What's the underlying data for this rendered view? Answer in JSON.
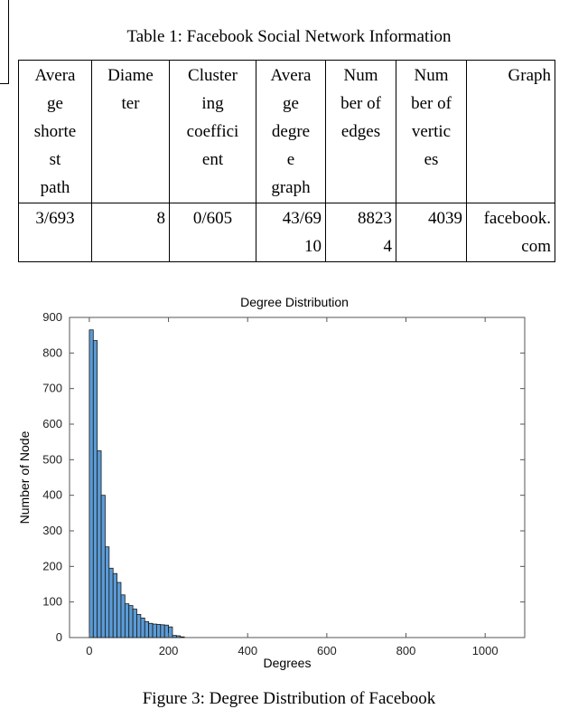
{
  "table": {
    "caption": "Table 1: Facebook Social Network Information",
    "headers": [
      [
        "Avera",
        "ge",
        "shorte",
        "st",
        "path"
      ],
      [
        "Diame",
        "ter"
      ],
      [
        "Cluster",
        "ing",
        "coeffici",
        "ent"
      ],
      [
        "Avera",
        "ge",
        "degre",
        "e",
        "graph"
      ],
      [
        "Num",
        "ber of",
        "edges"
      ],
      [
        "Num",
        "ber of",
        "vertic",
        "es"
      ],
      [
        "Graph"
      ]
    ],
    "row": [
      [
        "3/693"
      ],
      [
        "8"
      ],
      [
        "0/605"
      ],
      [
        "43/69",
        "10"
      ],
      [
        "8823",
        "4"
      ],
      [
        "4039"
      ],
      [
        "facebook.",
        "com"
      ]
    ]
  },
  "figure": {
    "caption": "Figure 3: Degree Distribution of Facebook"
  },
  "chart_data": {
    "type": "bar",
    "title": "Degree Distribution",
    "xlabel": "Degrees",
    "ylabel": "Number of Node",
    "xlim": [
      -50,
      1100
    ],
    "ylim": [
      0,
      900
    ],
    "xticks": [
      0,
      200,
      400,
      600,
      800,
      1000
    ],
    "yticks": [
      0,
      100,
      200,
      300,
      400,
      500,
      600,
      700,
      800,
      900
    ],
    "bin_width": 10,
    "bins": [
      0,
      10,
      20,
      30,
      40,
      50,
      60,
      70,
      80,
      90,
      100,
      110,
      120,
      130,
      140,
      150,
      160,
      170,
      180,
      190,
      200,
      210,
      220,
      230
    ],
    "values": [
      865,
      835,
      525,
      400,
      255,
      195,
      180,
      155,
      120,
      95,
      90,
      80,
      65,
      55,
      45,
      40,
      38,
      37,
      36,
      35,
      30,
      6,
      5,
      2
    ],
    "bar_color": "#5b9bd5",
    "grid": false
  }
}
